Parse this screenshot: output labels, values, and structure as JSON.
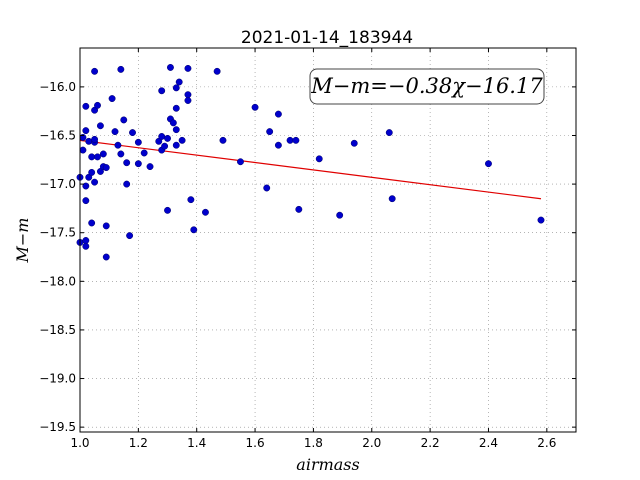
{
  "chart_data": {
    "type": "scatter",
    "title": "2021-01-14_183944",
    "xlabel": "airmass",
    "ylabel": "M−m",
    "annotation": "M−m=−0.38χ−16.17",
    "xlim": [
      1.0,
      2.7
    ],
    "ylim": [
      -19.55,
      -15.6
    ],
    "grid": true,
    "x_ticks": [
      1.0,
      1.2,
      1.4,
      1.6,
      1.8,
      2.0,
      2.2,
      2.4,
      2.6
    ],
    "x_tick_labels": [
      "1.0",
      "1.2",
      "1.4",
      "1.6",
      "1.8",
      "2.0",
      "2.2",
      "2.4",
      "2.6"
    ],
    "y_ticks": [
      -16.0,
      -16.5,
      -17.0,
      -17.5,
      -18.0,
      -18.5,
      -19.0,
      -19.5
    ],
    "y_tick_labels": [
      "−16.0",
      "−16.5",
      "−17.0",
      "−17.5",
      "−18.0",
      "−18.5",
      "−19.0",
      "−19.5"
    ],
    "colors": {
      "points": "#0000cc",
      "fit": "#e00000"
    },
    "fit": {
      "slope": -0.38,
      "intercept": -16.17,
      "x_range": [
        1.0,
        2.58
      ]
    },
    "points": [
      [
        1.0,
        -16.93
      ],
      [
        1.0,
        -17.6
      ],
      [
        1.01,
        -16.52
      ],
      [
        1.01,
        -16.65
      ],
      [
        1.02,
        -16.45
      ],
      [
        1.02,
        -17.02
      ],
      [
        1.02,
        -17.17
      ],
      [
        1.02,
        -17.58
      ],
      [
        1.02,
        -17.64
      ],
      [
        1.02,
        -16.2
      ],
      [
        1.03,
        -16.93
      ],
      [
        1.03,
        -16.56
      ],
      [
        1.04,
        -16.88
      ],
      [
        1.04,
        -17.4
      ],
      [
        1.04,
        -16.72
      ],
      [
        1.05,
        -16.57
      ],
      [
        1.05,
        -16.24
      ],
      [
        1.05,
        -16.54
      ],
      [
        1.05,
        -15.84
      ],
      [
        1.05,
        -16.98
      ],
      [
        1.06,
        -16.72
      ],
      [
        1.06,
        -16.19
      ],
      [
        1.07,
        -16.4
      ],
      [
        1.07,
        -16.87
      ],
      [
        1.08,
        -16.82
      ],
      [
        1.08,
        -16.69
      ],
      [
        1.09,
        -17.43
      ],
      [
        1.09,
        -16.83
      ],
      [
        1.09,
        -17.75
      ],
      [
        1.11,
        -16.12
      ],
      [
        1.12,
        -16.46
      ],
      [
        1.13,
        -16.6
      ],
      [
        1.14,
        -16.69
      ],
      [
        1.14,
        -15.82
      ],
      [
        1.15,
        -16.34
      ],
      [
        1.16,
        -16.78
      ],
      [
        1.16,
        -17.0
      ],
      [
        1.17,
        -17.53
      ],
      [
        1.18,
        -16.47
      ],
      [
        1.2,
        -16.57
      ],
      [
        1.2,
        -16.79
      ],
      [
        1.22,
        -16.68
      ],
      [
        1.24,
        -16.82
      ],
      [
        1.27,
        -16.56
      ],
      [
        1.28,
        -16.04
      ],
      [
        1.28,
        -16.65
      ],
      [
        1.28,
        -16.51
      ],
      [
        1.29,
        -16.61
      ],
      [
        1.3,
        -16.53
      ],
      [
        1.3,
        -17.27
      ],
      [
        1.31,
        -16.33
      ],
      [
        1.31,
        -15.8
      ],
      [
        1.32,
        -16.37
      ],
      [
        1.33,
        -16.01
      ],
      [
        1.33,
        -16.22
      ],
      [
        1.33,
        -16.44
      ],
      [
        1.33,
        -16.6
      ],
      [
        1.34,
        -15.95
      ],
      [
        1.35,
        -16.55
      ],
      [
        1.37,
        -16.14
      ],
      [
        1.37,
        -16.08
      ],
      [
        1.37,
        -15.81
      ],
      [
        1.38,
        -17.16
      ],
      [
        1.39,
        -17.47
      ],
      [
        1.43,
        -17.29
      ],
      [
        1.47,
        -15.84
      ],
      [
        1.49,
        -16.55
      ],
      [
        1.55,
        -16.77
      ],
      [
        1.6,
        -16.21
      ],
      [
        1.64,
        -17.04
      ],
      [
        1.65,
        -16.46
      ],
      [
        1.68,
        -16.28
      ],
      [
        1.68,
        -16.6
      ],
      [
        1.72,
        -16.55
      ],
      [
        1.74,
        -16.55
      ],
      [
        1.75,
        -17.26
      ],
      [
        1.82,
        -16.74
      ],
      [
        1.89,
        -17.32
      ],
      [
        1.94,
        -16.58
      ],
      [
        2.06,
        -16.47
      ],
      [
        2.07,
        -17.15
      ],
      [
        2.4,
        -16.79
      ],
      [
        2.58,
        -17.37
      ]
    ]
  }
}
